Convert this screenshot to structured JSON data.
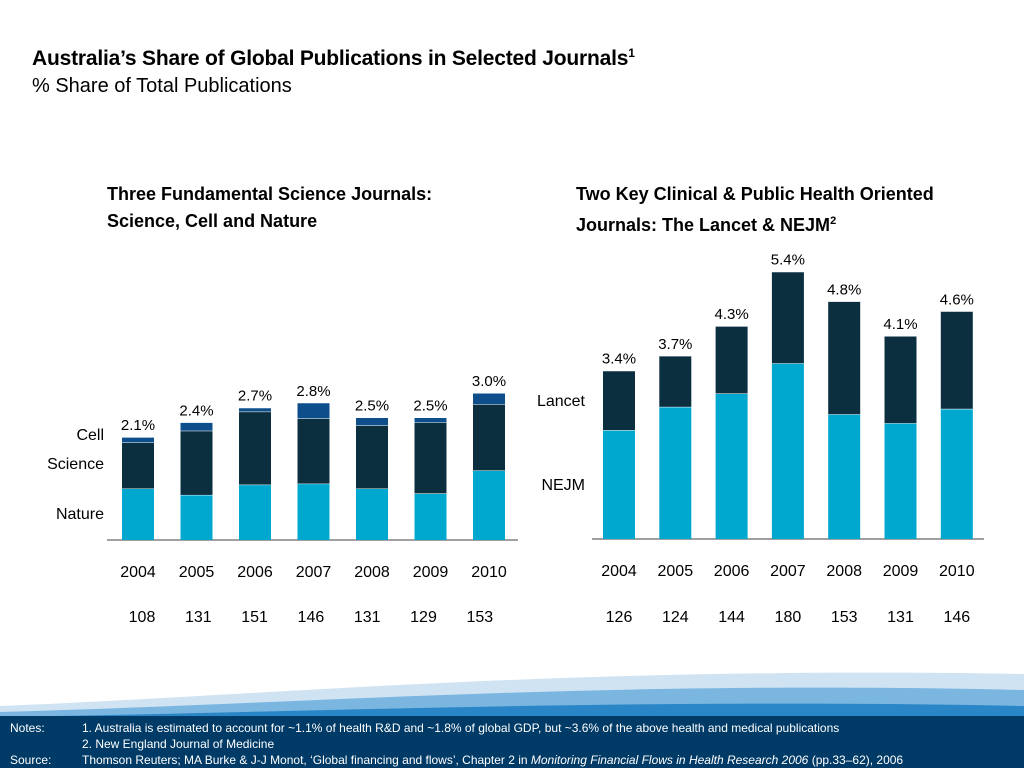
{
  "header": {
    "title": "Australia’s Share of Global Publications in Selected Journals",
    "title_sup": "1",
    "subtitle": "% Share of Total Publications"
  },
  "colors": {
    "nature": "#00a8d0",
    "science": "#0b2f3f",
    "cell": "#0e4f8b",
    "nejm": "#00a8d0",
    "lancet": "#0b2f3f",
    "footer_bg": "#003a66",
    "wave": "#2a86c6"
  },
  "chart_data": [
    {
      "type": "bar",
      "stacked": true,
      "title_line1": "Three Fundamental Science Journals:",
      "title_line2": "Science, Cell and Nature",
      "categories": [
        "2004",
        "2005",
        "2006",
        "2007",
        "2008",
        "2009",
        "2010"
      ],
      "series": [
        {
          "name": "Nature",
          "values": [
            1.05,
            0.92,
            1.13,
            1.15,
            1.05,
            0.95,
            1.42
          ]
        },
        {
          "name": "Science",
          "values": [
            0.94,
            1.31,
            1.49,
            1.33,
            1.29,
            1.45,
            1.35
          ]
        },
        {
          "name": "Cell",
          "values": [
            0.11,
            0.17,
            0.08,
            0.32,
            0.16,
            0.1,
            0.23
          ]
        }
      ],
      "totals": [
        "2.1%",
        "2.4%",
        "2.7%",
        "2.8%",
        "2.5%",
        "2.5%",
        "3.0%"
      ],
      "counts": [
        "108",
        "131",
        "151",
        "146",
        "131",
        "129",
        "153"
      ],
      "ylim": [
        0,
        3.2
      ]
    },
    {
      "type": "bar",
      "stacked": true,
      "title_line1": "Two Key Clinical & Public Health Oriented",
      "title_line2": "Journals: The Lancet & NEJM",
      "title_sup": "2",
      "categories": [
        "2004",
        "2005",
        "2006",
        "2007",
        "2008",
        "2009",
        "2010"
      ],
      "series": [
        {
          "name": "NEJM",
          "values": [
            2.2,
            2.67,
            2.94,
            3.55,
            2.52,
            2.34,
            2.63
          ]
        },
        {
          "name": "Lancet",
          "values": [
            1.2,
            1.03,
            1.36,
            1.85,
            2.28,
            1.76,
            1.97
          ]
        }
      ],
      "totals": [
        "3.4%",
        "3.7%",
        "4.3%",
        "5.4%",
        "4.8%",
        "4.1%",
        "4.6%"
      ],
      "counts": [
        "126",
        "124",
        "144",
        "180",
        "153",
        "131",
        "146"
      ],
      "ylim": [
        0,
        5.4
      ]
    }
  ],
  "footer": {
    "notes_label": "Notes:",
    "note1": "1. Australia is estimated to account for ~1.1% of health R&D and ~1.8% of global GDP, but ~3.6% of the above health and medical publications",
    "note2": "2. New England Journal of Medicine",
    "source_label": "Source:",
    "source_pre": "Thomson Reuters; MA Burke & J-J Monot, ‘Global financing and flows’, Chapter 2 in ",
    "source_italic": "Monitoring Financial Flows in Health Research 2006",
    "source_post": " (pp.33–62), 2006"
  }
}
